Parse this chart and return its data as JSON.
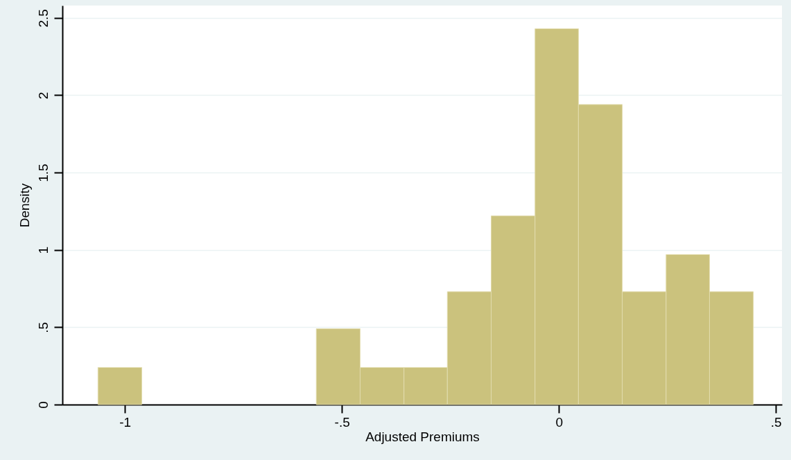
{
  "chart_data": {
    "type": "histogram",
    "xlabel": "Adjusted Premiums",
    "ylabel": "Density",
    "bins": [
      -1.062,
      -0.961,
      -0.559,
      -0.458,
      -0.357,
      -0.257,
      -0.156,
      -0.055,
      0.045,
      0.146,
      0.247,
      0.347,
      0.448
    ],
    "values": [
      0.24,
      0,
      0.49,
      0.24,
      0.24,
      0.73,
      1.22,
      2.43,
      1.94,
      0.73,
      0.97,
      0.73
    ],
    "color": "#cbc27d",
    "xlim": [
      -1.144,
      0.514
    ],
    "xticks": [
      -1,
      {
        "value": -0.5,
        "label": "-.5"
      },
      0,
      {
        "value": 0.5,
        "label": ".5"
      }
    ],
    "ylim": [
      0,
      2.58
    ],
    "yticks": [
      0,
      {
        "value": 0.5,
        "label": ".5"
      },
      1,
      1.5,
      2,
      2.5
    ],
    "grid": "y"
  }
}
